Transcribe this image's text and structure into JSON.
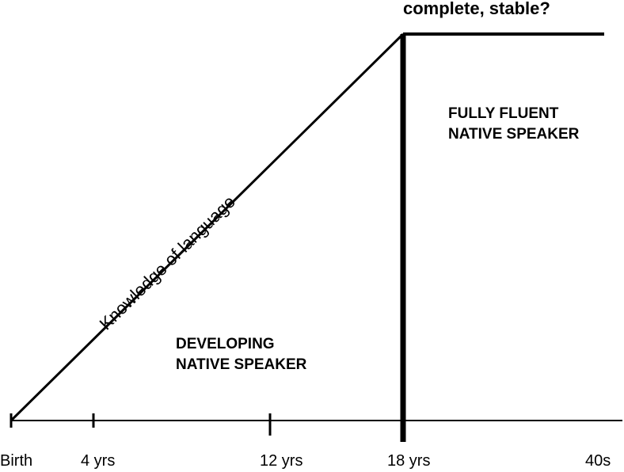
{
  "diagram": {
    "top_caption": "complete, stable?",
    "slope_label": "Knowledge of language",
    "regions": {
      "developing": [
        "DEVELOPING",
        "NATIVE SPEAKER"
      ],
      "fluent": [
        "FULLY FLUENT",
        "NATIVE SPEAKER"
      ]
    },
    "axis_ticks": [
      "Birth",
      "4 yrs",
      "12 yrs",
      "18 yrs",
      "40s"
    ],
    "line_color": "#000000"
  }
}
